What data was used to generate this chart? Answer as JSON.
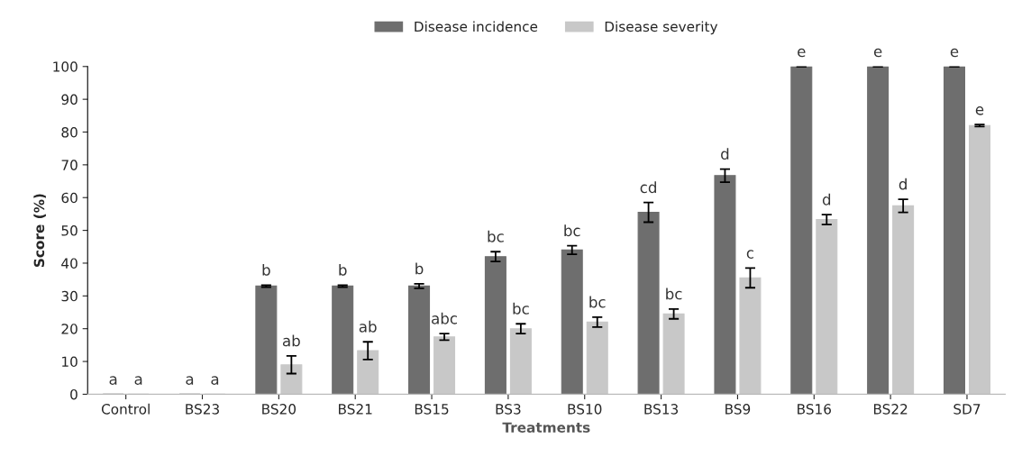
{
  "chart_data": {
    "type": "bar",
    "xlabel": "Treatments",
    "ylabel": "Score (%)",
    "categories": [
      "Control",
      "BS23",
      "BS20",
      "BS21",
      "BS15",
      "BS3",
      "BS10",
      "BS13",
      "BS9",
      "BS16",
      "BS22",
      "SD7"
    ],
    "series": [
      {
        "name": "Disease incidence",
        "color": "#6e6e6e",
        "values": [
          0,
          0,
          33,
          33,
          33,
          42,
          44,
          55.5,
          66.7,
          100,
          100,
          100
        ],
        "errors": [
          null,
          null,
          0.3,
          0.3,
          0.7,
          1.5,
          1.3,
          3,
          2,
          0,
          0,
          0
        ],
        "value_labels": [
          "a",
          "a",
          "b",
          "b",
          "b",
          "bc",
          "bc",
          "cd",
          "d",
          "e",
          "e",
          "e"
        ]
      },
      {
        "name": "Disease severity",
        "color": "#c8c8c8",
        "values": [
          0,
          0,
          9,
          13.3,
          17.5,
          20,
          22,
          24.5,
          35.5,
          53.3,
          57.5,
          82
        ],
        "errors": [
          null,
          null,
          2.7,
          2.7,
          1,
          1.5,
          1.5,
          1.5,
          3,
          1.5,
          2,
          0.3
        ],
        "value_labels": [
          "a",
          "a",
          "ab",
          "ab",
          "abc",
          "bc",
          "bc",
          "bc",
          "c",
          "d",
          "d",
          "e"
        ]
      }
    ],
    "ylim": [
      0,
      100
    ],
    "yticks": [
      0,
      10,
      20,
      30,
      40,
      50,
      60,
      70,
      80,
      90,
      100
    ],
    "grid": false,
    "legend": "top"
  }
}
